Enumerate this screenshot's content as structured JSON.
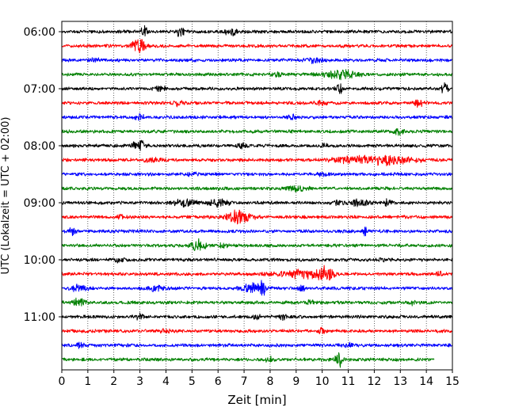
{
  "chart_data": {
    "type": "line",
    "title": "",
    "xlabel": "Zeit  [min]",
    "ylabel": "UTC (Lokalzeit = UTC + 02:00)",
    "xlim": [
      0,
      15
    ],
    "x_ticks": [
      0,
      1,
      2,
      3,
      4,
      5,
      6,
      7,
      8,
      9,
      10,
      11,
      12,
      13,
      14,
      15
    ],
    "x_tick_labels": [
      "0",
      "1",
      "2",
      "3",
      "4",
      "5",
      "6",
      "7",
      "8",
      "9",
      "10",
      "11",
      "12",
      "13",
      "14",
      "15"
    ],
    "y_tick_labels": [
      "06:00",
      "07:00",
      "08:00",
      "09:00",
      "10:00",
      "11:00"
    ],
    "y_tick_trace_index": [
      0,
      4,
      8,
      12,
      16,
      20
    ],
    "grid": "vertical dotted",
    "trace_minutes": 15,
    "series": [
      {
        "start": "06:00",
        "color": "#000000",
        "x_end": 15,
        "events": [
          {
            "x": 3.15,
            "a": 0.8,
            "d": 0.12
          },
          {
            "x": 4.55,
            "a": 0.8,
            "d": 0.12
          },
          {
            "x": 6.5,
            "a": 0.75,
            "d": 0.2
          }
        ]
      },
      {
        "start": "06:15",
        "color": "#ff0000",
        "x_end": 15,
        "events": [
          {
            "x": 2.95,
            "a": 1.0,
            "d": 0.25
          }
        ]
      },
      {
        "start": "06:30",
        "color": "#0000ff",
        "x_end": 15,
        "events": [
          {
            "x": 1.3,
            "a": 0.3,
            "d": 0.2
          },
          {
            "x": 9.7,
            "a": 0.3,
            "d": 0.3
          }
        ]
      },
      {
        "start": "06:45",
        "color": "#008000",
        "x_end": 15,
        "events": [
          {
            "x": 10.7,
            "a": 0.55,
            "d": 0.7
          },
          {
            "x": 8.3,
            "a": 0.3,
            "d": 0.2
          }
        ]
      },
      {
        "start": "07:00",
        "color": "#000000",
        "x_end": 15,
        "events": [
          {
            "x": 3.8,
            "a": 0.35,
            "d": 0.2
          },
          {
            "x": 10.65,
            "a": 0.8,
            "d": 0.12
          },
          {
            "x": 14.7,
            "a": 1.0,
            "d": 0.12
          }
        ]
      },
      {
        "start": "07:15",
        "color": "#ff0000",
        "x_end": 15,
        "events": [
          {
            "x": 4.45,
            "a": 0.35,
            "d": 0.2
          },
          {
            "x": 13.7,
            "a": 0.8,
            "d": 0.12
          },
          {
            "x": 9.95,
            "a": 0.25,
            "d": 0.2
          }
        ]
      },
      {
        "start": "07:30",
        "color": "#0000ff",
        "x_end": 15,
        "events": [
          {
            "x": 3.0,
            "a": 0.3,
            "d": 0.2
          },
          {
            "x": 8.9,
            "a": 0.3,
            "d": 0.2
          }
        ]
      },
      {
        "start": "07:45",
        "color": "#008000",
        "x_end": 15,
        "events": [
          {
            "x": 12.95,
            "a": 0.5,
            "d": 0.2
          }
        ]
      },
      {
        "start": "08:00",
        "color": "#000000",
        "x_end": 15,
        "events": [
          {
            "x": 3.05,
            "a": 0.9,
            "d": 0.12
          },
          {
            "x": 2.8,
            "a": 0.5,
            "d": 0.12
          },
          {
            "x": 6.9,
            "a": 0.35,
            "d": 0.2
          },
          {
            "x": 10.05,
            "a": 0.3,
            "d": 0.15
          }
        ]
      },
      {
        "start": "08:15",
        "color": "#ff0000",
        "x_end": 15,
        "events": [
          {
            "x": 12.3,
            "a": 0.65,
            "d": 1.2
          },
          {
            "x": 10.9,
            "a": 0.35,
            "d": 0.5
          },
          {
            "x": 3.5,
            "a": 0.3,
            "d": 0.3
          }
        ]
      },
      {
        "start": "08:30",
        "color": "#0000ff",
        "x_end": 15,
        "events": [
          {
            "x": 5.0,
            "a": 0.25,
            "d": 0.2
          },
          {
            "x": 10.0,
            "a": 0.25,
            "d": 0.2
          }
        ]
      },
      {
        "start": "08:45",
        "color": "#008000",
        "x_end": 15,
        "events": [
          {
            "x": 9.0,
            "a": 0.35,
            "d": 0.4
          }
        ]
      },
      {
        "start": "09:00",
        "color": "#000000",
        "x_end": 15,
        "events": [
          {
            "x": 4.7,
            "a": 0.55,
            "d": 0.4
          },
          {
            "x": 6.0,
            "a": 0.45,
            "d": 0.4
          },
          {
            "x": 11.4,
            "a": 0.5,
            "d": 0.4
          },
          {
            "x": 12.5,
            "a": 0.5,
            "d": 0.15
          },
          {
            "x": 10.6,
            "a": 0.45,
            "d": 0.15
          }
        ]
      },
      {
        "start": "09:15",
        "color": "#ff0000",
        "x_end": 15,
        "events": [
          {
            "x": 6.8,
            "a": 0.95,
            "d": 0.5
          },
          {
            "x": 2.3,
            "a": 0.3,
            "d": 0.15
          }
        ]
      },
      {
        "start": "09:30",
        "color": "#0000ff",
        "x_end": 15,
        "events": [
          {
            "x": 0.4,
            "a": 0.5,
            "d": 0.15
          },
          {
            "x": 11.65,
            "a": 0.55,
            "d": 0.12
          }
        ]
      },
      {
        "start": "09:45",
        "color": "#008000",
        "x_end": 15,
        "events": [
          {
            "x": 5.25,
            "a": 0.8,
            "d": 0.25
          },
          {
            "x": 6.2,
            "a": 0.3,
            "d": 0.2
          }
        ]
      },
      {
        "start": "10:00",
        "color": "#000000",
        "x_end": 15,
        "events": [
          {
            "x": 12.3,
            "a": 0.4,
            "d": 0.12
          },
          {
            "x": 2.2,
            "a": 0.3,
            "d": 0.2
          }
        ]
      },
      {
        "start": "10:15",
        "color": "#ff0000",
        "x_end": 15,
        "events": [
          {
            "x": 9.2,
            "a": 0.55,
            "d": 1.0
          },
          {
            "x": 10.15,
            "a": 0.8,
            "d": 0.3
          },
          {
            "x": 14.5,
            "a": 0.4,
            "d": 0.12
          }
        ]
      },
      {
        "start": "10:30",
        "color": "#0000ff",
        "x_end": 15,
        "events": [
          {
            "x": 0.7,
            "a": 0.5,
            "d": 0.3
          },
          {
            "x": 7.3,
            "a": 0.6,
            "d": 0.4
          },
          {
            "x": 7.7,
            "a": 1.1,
            "d": 0.1
          },
          {
            "x": 9.2,
            "a": 0.45,
            "d": 0.12
          },
          {
            "x": 3.6,
            "a": 0.35,
            "d": 0.3
          }
        ]
      },
      {
        "start": "10:45",
        "color": "#008000",
        "x_end": 15,
        "events": [
          {
            "x": 0.6,
            "a": 0.55,
            "d": 0.3
          },
          {
            "x": 9.5,
            "a": 0.4,
            "d": 0.15
          },
          {
            "x": 13.5,
            "a": 0.3,
            "d": 0.15
          }
        ]
      },
      {
        "start": "11:00",
        "color": "#000000",
        "x_end": 15,
        "events": [
          {
            "x": 7.5,
            "a": 0.55,
            "d": 0.12
          },
          {
            "x": 8.5,
            "a": 0.6,
            "d": 0.12
          },
          {
            "x": 3.0,
            "a": 0.35,
            "d": 0.15
          }
        ]
      },
      {
        "start": "11:15",
        "color": "#ff0000",
        "x_end": 15,
        "events": [
          {
            "x": 4.0,
            "a": 0.3,
            "d": 0.2
          },
          {
            "x": 10.0,
            "a": 0.3,
            "d": 0.2
          }
        ]
      },
      {
        "start": "11:30",
        "color": "#0000ff",
        "x_end": 15,
        "events": [
          {
            "x": 0.7,
            "a": 0.45,
            "d": 0.15
          },
          {
            "x": 11.0,
            "a": 0.3,
            "d": 0.2
          }
        ]
      },
      {
        "start": "11:45",
        "color": "#008000",
        "x_end": 14.3,
        "events": [
          {
            "x": 10.65,
            "a": 1.0,
            "d": 0.15
          },
          {
            "x": 8.0,
            "a": 0.3,
            "d": 0.2
          }
        ]
      }
    ]
  }
}
